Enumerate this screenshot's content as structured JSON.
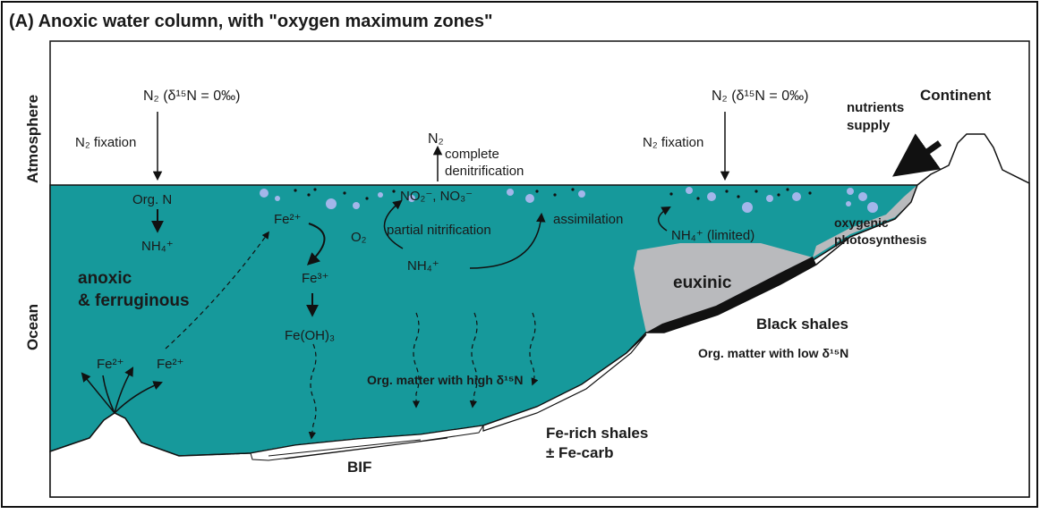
{
  "title": "(A) Anoxic water column, with \"oxygen maximum zones\"",
  "side_labels": {
    "atmosphere": "Atmosphere",
    "ocean": "Ocean"
  },
  "labels": {
    "continent": "Continent",
    "n2_left": "N₂  (δ¹⁵N = 0‰)",
    "n2_right": "N₂  (δ¹⁵N = 0‰)",
    "fixation_left": "N₂ fixation",
    "fixation_right": "N₂ fixation",
    "n2_up": "N₂",
    "denitrification": [
      "complete",
      "denitrification"
    ],
    "nutrients": [
      "nutrients",
      "supply"
    ],
    "org_n": "Org. N",
    "nh4_left": "NH₄⁺",
    "fe2_center": "Fe²⁺",
    "o2": "O₂",
    "fe3": "Fe³⁺",
    "feoh3": "Fe(OH)₃",
    "nox": "NO₂⁻, NO₃⁻",
    "partial_nitrification": "partial nitrification",
    "nh4_center": "NH₄⁺",
    "assimilation": "assimilation",
    "nh4_limited": "NH₄⁺ (limited)",
    "photosynthesis": [
      "oxygenic",
      "photosynthesis"
    ],
    "anoxic": [
      "anoxic",
      "& ferruginous"
    ],
    "euxinic": "euxinic",
    "black_shales": "Black shales",
    "low_d15n": "Org. matter with low δ¹⁵N",
    "high_d15n": "Org. matter with high δ¹⁵N",
    "fe2_vent_left": "Fe²⁺",
    "fe2_vent_right": "Fe²⁺",
    "fe_shales": [
      "Fe-rich shales",
      "± Fe-carb"
    ],
    "bif": "BIF"
  }
}
